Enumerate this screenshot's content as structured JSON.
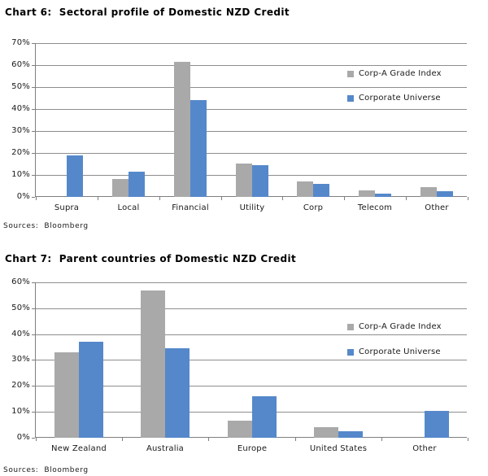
{
  "page": {
    "background": "#ffffff"
  },
  "colors": {
    "series_corp_a": "#a9a9a9",
    "series_universe": "#5588cb",
    "gridline": "#8e8e8e",
    "axis": "#7f7f7f",
    "text": "#1a1a1a"
  },
  "chart_data": [
    {
      "type": "bar",
      "title": "Chart 6:  Sectoral profile of Domestic NZD Credit",
      "source": "Sources:  Bloomberg",
      "categories": [
        "Supra",
        "Local",
        "Financial",
        "Utility",
        "Corp",
        "Telecom",
        "Other"
      ],
      "series": [
        {
          "name": "Corp-A Grade Index",
          "color": "#a9a9a9",
          "values": [
            0,
            8,
            61.5,
            15,
            7,
            3,
            4.5
          ]
        },
        {
          "name": "Corporate Universe",
          "color": "#5588cb",
          "values": [
            19,
            11.5,
            44,
            14.5,
            6,
            1.5,
            2.5
          ]
        }
      ],
      "xlabel": "",
      "ylabel": "",
      "ylim": [
        0,
        70
      ],
      "ytick_step": 10,
      "ytick_labels": [
        "0%",
        "10%",
        "20%",
        "30%",
        "40%",
        "50%",
        "60%",
        "70%"
      ],
      "grid": true,
      "legend_position": "inside-upper-right"
    },
    {
      "type": "bar",
      "title": "Chart 7:  Parent countries of Domestic NZD Credit",
      "source": "Sources:  Bloomberg",
      "categories": [
        "New Zealand",
        "Australia",
        "Europe",
        "United States",
        "Other"
      ],
      "series": [
        {
          "name": "Corp-A Grade Index",
          "color": "#a9a9a9",
          "values": [
            33,
            57,
            6.5,
            4,
            0
          ]
        },
        {
          "name": "Corporate Universe",
          "color": "#5588cb",
          "values": [
            37,
            34.5,
            16,
            2.5,
            10.5
          ]
        }
      ],
      "xlabel": "",
      "ylabel": "",
      "ylim": [
        0,
        60
      ],
      "ytick_step": 10,
      "ytick_labels": [
        "0%",
        "10%",
        "20%",
        "30%",
        "40%",
        "50%",
        "60%"
      ],
      "grid": true,
      "legend_position": "inside-right"
    }
  ]
}
